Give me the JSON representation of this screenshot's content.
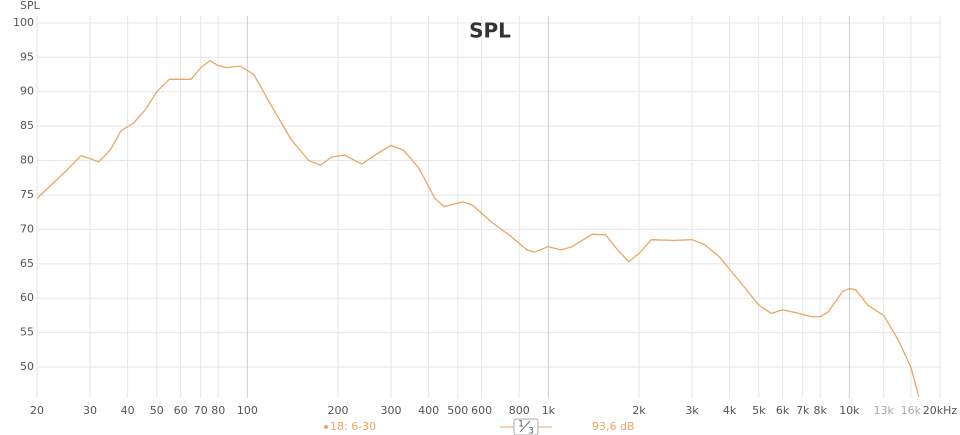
{
  "chart_data": {
    "type": "line",
    "title": "SPL",
    "y_label": "SPL",
    "x_unit": "Hz",
    "log_x": true,
    "grid": true,
    "xlim": [
      20,
      20000
    ],
    "ylim": [
      45.5,
      101
    ],
    "yticks": [
      50,
      55,
      60,
      65,
      70,
      75,
      80,
      85,
      90,
      95,
      100
    ],
    "xticks": [
      20,
      30,
      40,
      50,
      60,
      70,
      80,
      100,
      200,
      300,
      400,
      500,
      600,
      800,
      {
        "value": 1000,
        "label": "1k"
      },
      {
        "value": 2000,
        "label": "2k"
      },
      {
        "value": 3000,
        "label": "3k"
      },
      {
        "value": 4000,
        "label": "4k"
      },
      {
        "value": 5000,
        "label": "5k"
      },
      {
        "value": 6000,
        "label": "6k"
      },
      {
        "value": 7000,
        "label": "7k"
      },
      {
        "value": 8000,
        "label": "8k"
      },
      {
        "value": 10000,
        "label": "10k"
      },
      {
        "value": 13000,
        "label": "13k"
      },
      {
        "value": 16000,
        "label": "16k"
      },
      {
        "value": 20000,
        "label": "20kHz"
      }
    ],
    "series": [
      {
        "name": "18: 6-30",
        "color": "#eda662",
        "x": [
          20,
          25,
          28,
          30,
          32,
          35,
          38,
          42,
          46,
          50,
          55,
          60,
          65,
          70,
          75,
          80,
          85,
          95,
          105,
          120,
          140,
          160,
          175,
          190,
          210,
          240,
          270,
          300,
          330,
          370,
          420,
          450,
          520,
          560,
          650,
          750,
          850,
          900,
          1000,
          1100,
          1200,
          1400,
          1550,
          1700,
          1850,
          2000,
          2200,
          2600,
          3000,
          3300,
          3700,
          4500,
          5000,
          5500,
          6000,
          6500,
          7500,
          8000,
          8500,
          9500,
          10000,
          10500,
          11500,
          13000,
          14500,
          16000,
          17000
        ],
        "values": [
          74.5,
          78.5,
          80.7,
          80.3,
          79.8,
          81.5,
          84.3,
          85.5,
          87.5,
          90,
          91.8,
          91.8,
          91.8,
          93.5,
          94.5,
          93.8,
          93.5,
          93.7,
          92.5,
          88,
          83,
          80,
          79.3,
          80.5,
          80.8,
          79.5,
          81,
          82.2,
          81.5,
          79,
          74.5,
          73.3,
          74,
          73.5,
          71,
          69,
          67,
          66.7,
          67.5,
          67,
          67.5,
          69.3,
          69.2,
          67,
          65.3,
          66.5,
          68.5,
          68.4,
          68.5,
          67.8,
          66,
          61.5,
          59,
          57.8,
          58.3,
          58,
          57.3,
          57.3,
          58,
          61,
          61.4,
          61.2,
          59,
          57.5,
          54,
          50,
          45.7
        ]
      }
    ],
    "smoothing": {
      "numerator": "1",
      "denominator": "3"
    },
    "level": "93,6 dB"
  }
}
